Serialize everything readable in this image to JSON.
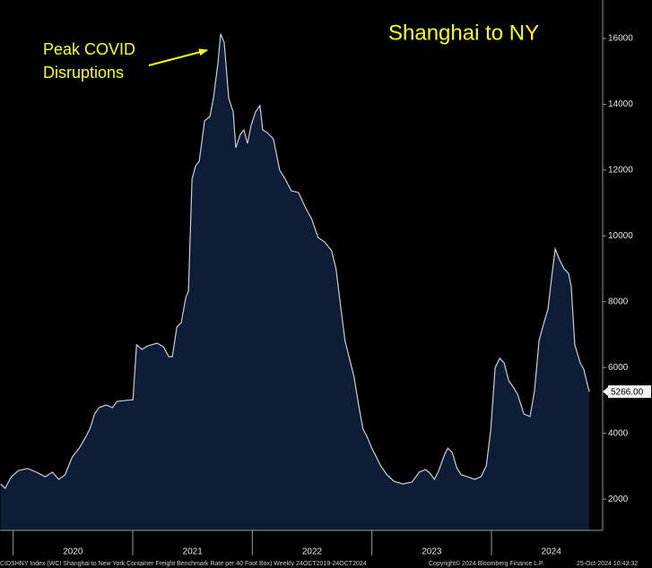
{
  "chart_data": {
    "type": "area",
    "title": "Shanghai to NY",
    "annotation": [
      "Peak COVID",
      "Disruptions"
    ],
    "source": "CIDSHNY Index (WCI Shanghai to New York Container Freight Benchmark Rate per 40 Foot Box)  Weekly 24OCT2019-24OCT2024",
    "copyright": "Copyright© 2024 Bloomberg Finance L.P.",
    "timestamp": "25-Oct-2024 10:43:32",
    "x": [
      2019.895,
      2019.933,
      2019.985,
      2020.045,
      2020.12,
      2020.194,
      2020.269,
      2020.329,
      2020.381,
      2020.434,
      2020.494,
      2020.553,
      2020.606,
      2020.643,
      2020.681,
      2020.718,
      2020.778,
      2020.83,
      2020.868,
      2020.942,
      2021.002,
      2021.032,
      2021.077,
      2021.129,
      2021.204,
      2021.257,
      2021.301,
      2021.331,
      2021.369,
      2021.406,
      2021.444,
      2021.466,
      2021.496,
      2021.526,
      2021.556,
      2021.601,
      2021.645,
      2021.675,
      2021.713,
      2021.735,
      2021.765,
      2021.803,
      2021.84,
      2021.862,
      2021.9,
      2021.93,
      2021.96,
      2021.99,
      2022.027,
      2022.064,
      2022.087,
      2022.124,
      2022.176,
      2022.229,
      2022.274,
      2022.326,
      2022.386,
      2022.438,
      2022.498,
      2022.55,
      2022.603,
      2022.663,
      2022.7,
      2022.737,
      2022.775,
      2022.812,
      2022.85,
      2022.887,
      2022.924,
      2022.962,
      2022.999,
      2023.037,
      2023.074,
      2023.126,
      2023.186,
      2023.261,
      2023.336,
      2023.396,
      2023.448,
      2023.485,
      2023.523,
      2023.56,
      2023.605,
      2023.635,
      2023.672,
      2023.71,
      2023.747,
      2023.8,
      2023.859,
      2023.912,
      2023.957,
      2023.994,
      2024.031,
      2024.069,
      2024.106,
      2024.144,
      2024.181,
      2024.218,
      2024.271,
      2024.323,
      2024.361,
      2024.398,
      2024.435,
      2024.473,
      2024.503,
      2024.533,
      2024.57,
      2024.607,
      2024.645,
      2024.667,
      2024.697,
      2024.742,
      2024.772,
      2024.817
    ],
    "series": [
      {
        "color": "#c9ced8",
        "fill": "#0f1c36",
        "values": [
          2460,
          2330,
          2680,
          2870,
          2930,
          2820,
          2680,
          2820,
          2600,
          2740,
          3280,
          3550,
          3880,
          4150,
          4590,
          4780,
          4860,
          4780,
          4970,
          5000,
          5020,
          6690,
          6550,
          6660,
          6740,
          6630,
          6330,
          6330,
          7230,
          7370,
          8130,
          8320,
          11730,
          12130,
          12270,
          13500,
          13630,
          14180,
          15270,
          16140,
          15870,
          14180,
          13770,
          12680,
          13090,
          13220,
          12810,
          13360,
          13770,
          13960,
          13220,
          13140,
          12950,
          12000,
          11730,
          11370,
          11320,
          10910,
          10500,
          9950,
          9820,
          9550,
          9000,
          7910,
          6820,
          6280,
          5730,
          4910,
          4150,
          3880,
          3550,
          3280,
          3010,
          2740,
          2540,
          2460,
          2520,
          2820,
          2900,
          2790,
          2600,
          2870,
          3330,
          3550,
          3420,
          2950,
          2740,
          2680,
          2600,
          2680,
          3010,
          4100,
          6000,
          6280,
          6140,
          5600,
          5410,
          5190,
          4590,
          4510,
          5320,
          6820,
          7310,
          7780,
          8730,
          9600,
          9270,
          9000,
          8860,
          8460,
          6690,
          6140,
          5950,
          5266
        ],
        "value_labels": [
          null,
          null,
          null,
          null,
          null,
          null,
          null,
          null,
          null,
          null,
          null,
          null,
          null,
          null,
          null,
          null,
          null,
          null,
          null,
          null,
          null,
          null,
          null,
          null,
          null,
          null,
          null,
          null,
          null,
          null,
          null,
          null,
          null,
          null,
          null,
          null,
          null,
          null,
          null,
          null,
          null,
          null,
          null,
          null,
          null,
          null,
          null,
          null,
          null,
          null,
          null,
          null,
          null,
          null,
          null,
          null,
          null,
          null,
          null,
          null,
          null,
          null,
          null,
          null,
          null,
          null,
          null,
          null,
          null,
          null,
          null,
          null,
          null,
          null,
          null,
          null,
          null,
          null,
          null,
          null,
          null,
          null,
          null,
          null,
          null,
          null,
          null,
          null,
          null,
          null,
          null,
          null,
          null,
          null,
          null,
          null,
          null,
          null,
          null,
          null,
          null,
          null,
          null,
          null,
          null,
          null,
          null,
          null,
          null,
          null,
          null,
          null,
          null,
          "5266.00"
        ]
      }
    ],
    "xlim": [
      2019.89,
      2024.93
    ],
    "xticks": [
      2020,
      2021,
      2022,
      2023,
      2024
    ],
    "ylim": [
      1050,
      17170
    ],
    "yticks": [
      2000,
      4000,
      6000,
      8000,
      10000,
      12000,
      14000,
      16000
    ]
  }
}
